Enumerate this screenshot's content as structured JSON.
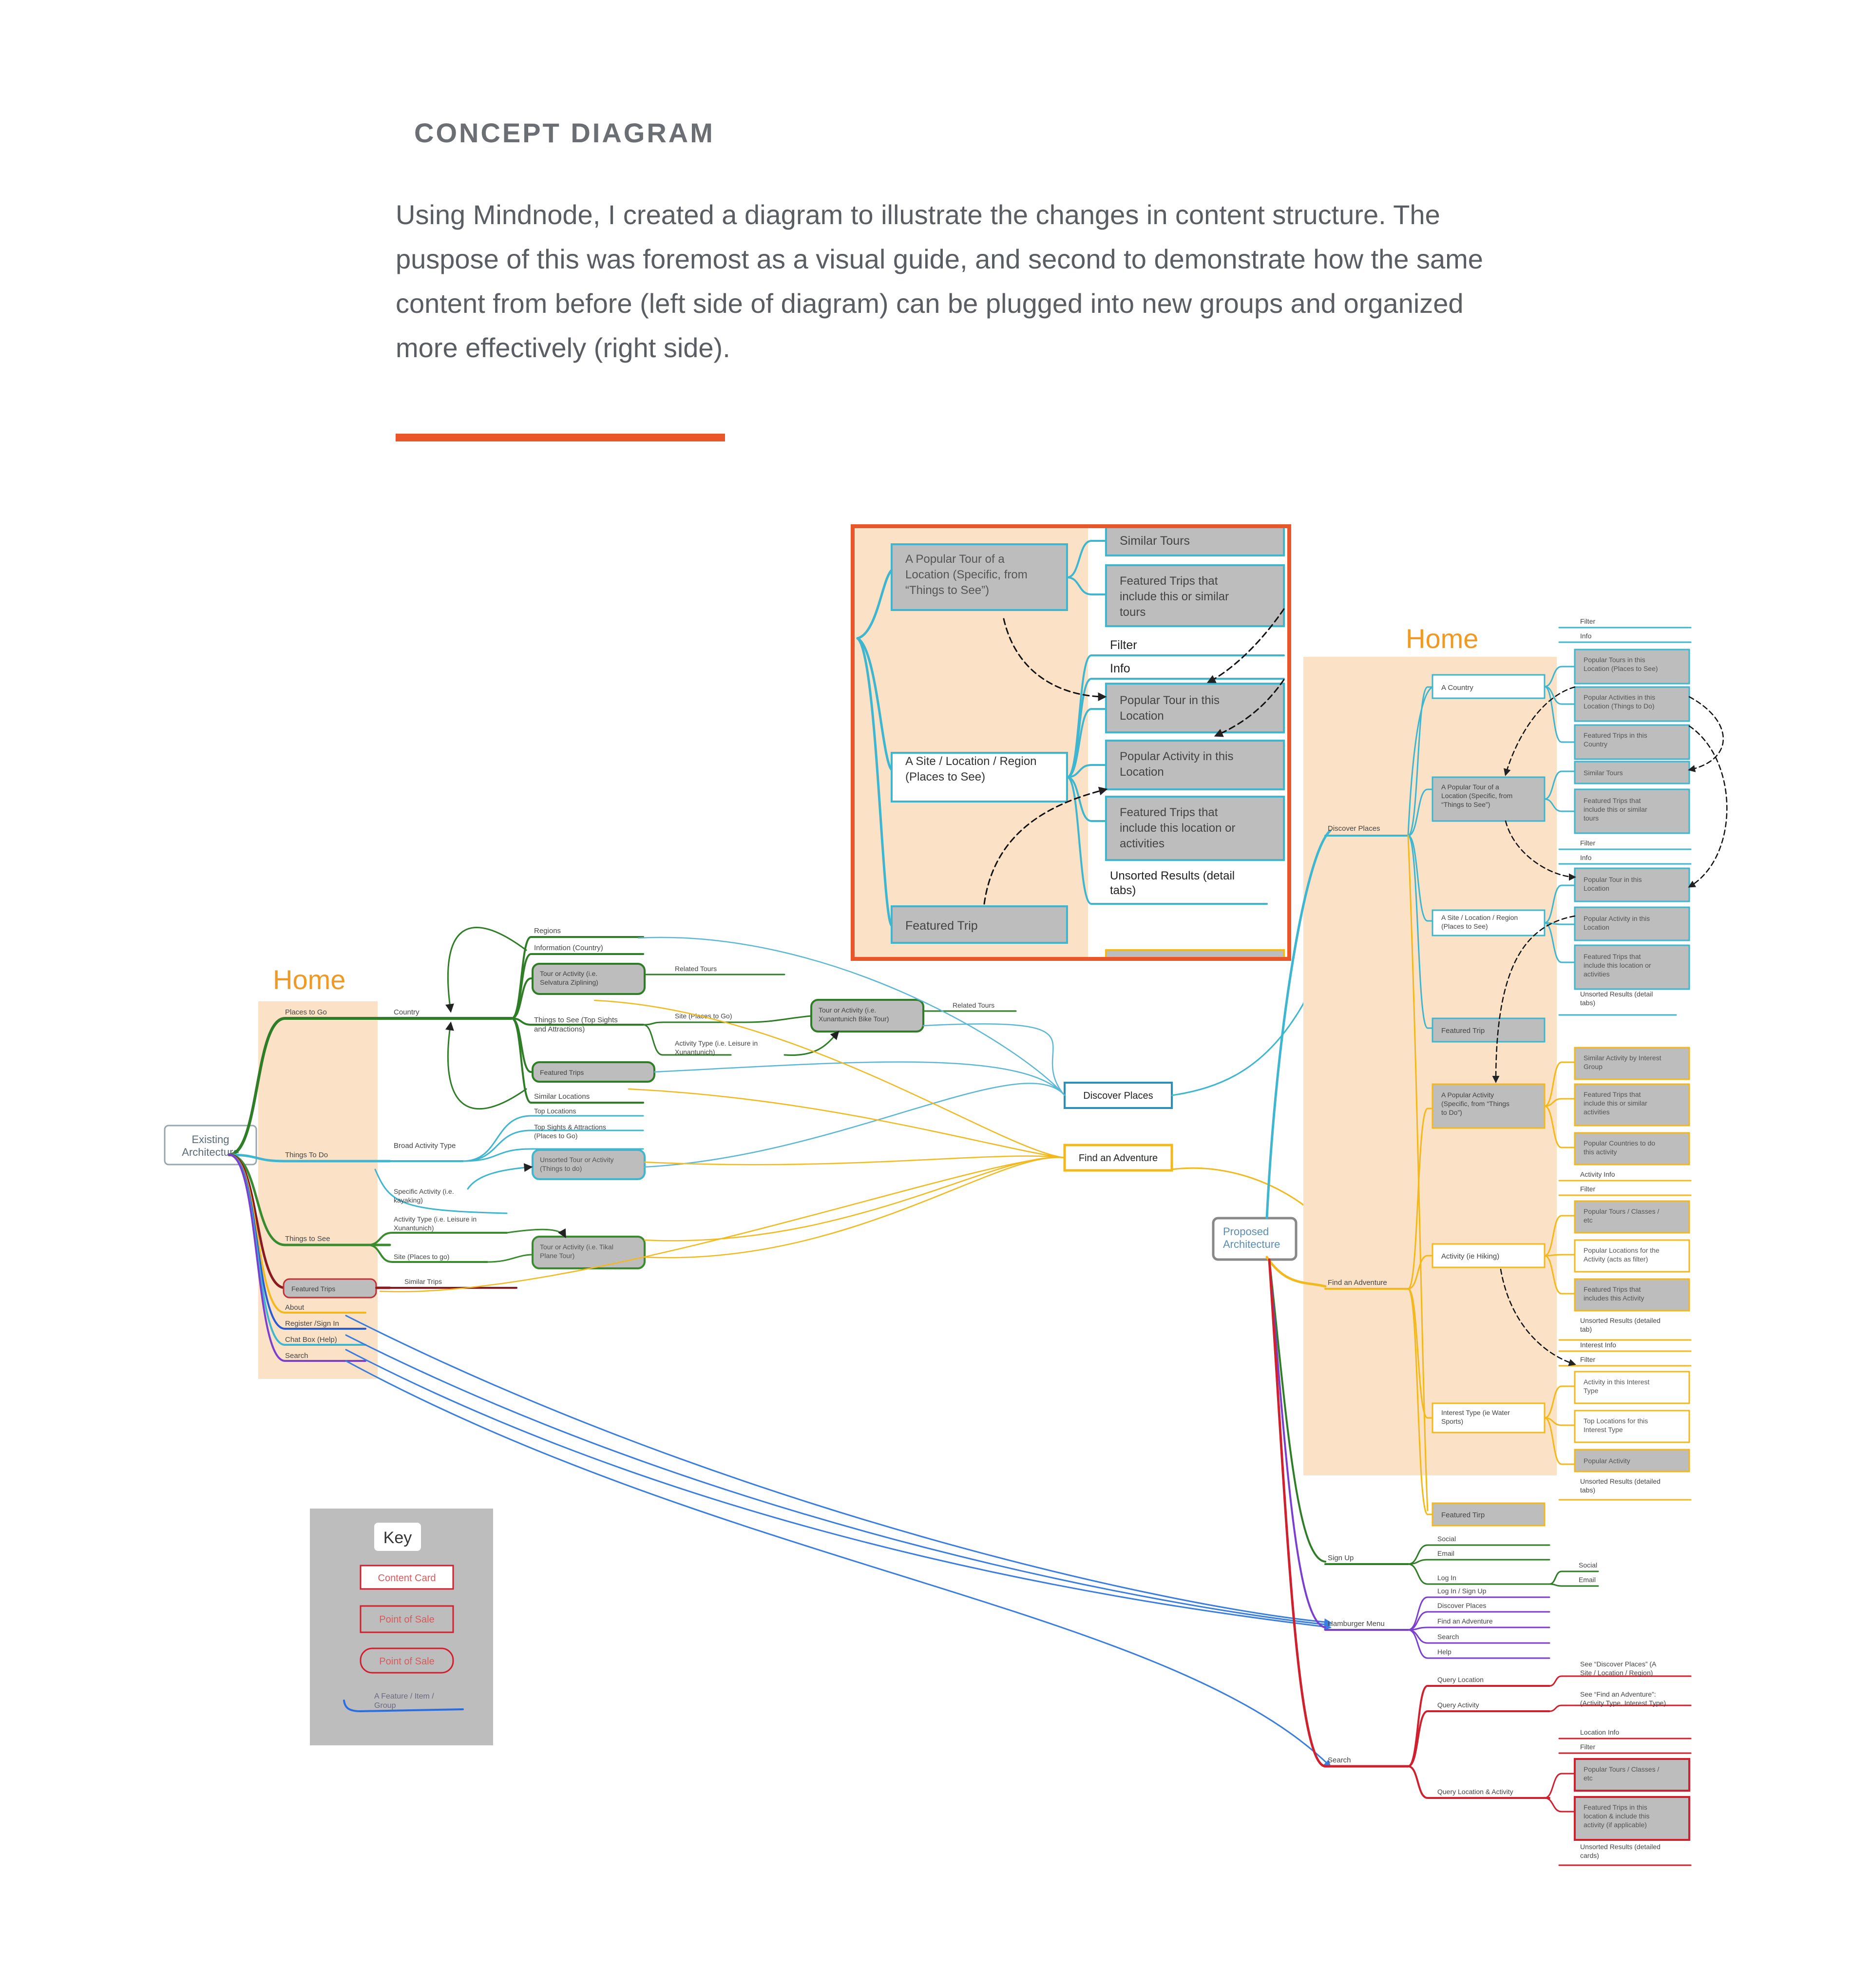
{
  "header": {
    "title": "CONCEPT DIAGRAM",
    "description": "Using Mindnode, I created a diagram to illustrate the changes in content structure. The puspose of this was foremost as a visual guide, and second to demonstrate how the same content from before (left side of diagram) can be plugged into new groups and organized more effectively (right side)."
  },
  "colors": {
    "accent_rule": "#e9562a",
    "home_band": "#fbe2c6",
    "home_label": "#f09a23",
    "teal": "#3fb6cf",
    "green": "#3a8b2f",
    "yellow": "#f2b81c",
    "purple": "#7b3fd0",
    "red": "#d0202e",
    "blue": "#3a7de0",
    "card_gray": "#bdbdbd"
  },
  "existing": {
    "home": "Home",
    "root": [
      "Existing",
      "Architecture"
    ],
    "sections": [
      "Places to Go",
      "Things To Do",
      "Things to See",
      "Featured Trips",
      "About",
      "Register /Sign In",
      "Chat Box (Help)",
      "Search"
    ],
    "places": {
      "country": "Country",
      "regions": "Regions",
      "information": "Information (Country)",
      "tour_card": [
        "Tour or Activity (i.e.",
        "Selvatura Ziplining)"
      ],
      "related_tours": "Related Tours",
      "things_to_see": [
        "Things to See (Top Sights",
        "and Attractions)"
      ],
      "site": "Site (Places to Go)",
      "activity_type": [
        "Activity Type (i.e. Leisure in",
        "Xunantunich)"
      ],
      "tour_card2": [
        "Tour or Activity (i.e.",
        "Xunantunich Bike Tour)"
      ],
      "related_tours2": "Related Tours",
      "featured_trips": "Featured Trips",
      "similar_locations": "Similar Locations"
    },
    "things_to_do": {
      "top_locations": "Top Locations",
      "top_sights": [
        "Top Sights & Attractions",
        "(Places to Go)"
      ],
      "broad_activity": "Broad Activity Type",
      "unsorted": [
        "Unsorted Tour or Activity",
        "(Things to do)"
      ],
      "specific_activity": [
        "Specific Activity (i.e.",
        "kayaking)"
      ]
    },
    "things_to_see": {
      "activity_type": [
        "Activity Type (i.e. Leisure in",
        "Xunantunich)"
      ],
      "site": "Site (Places to go)",
      "tour_card": [
        "Tour or Activity (i.e. Tikal",
        "Plane Tour)"
      ]
    },
    "featured": {
      "similar_trips": "Similar Trips"
    },
    "targets": {
      "discover": "Discover Places",
      "adventure": "Find an Adventure"
    }
  },
  "zoom": {
    "similar_tours": "Similar Tours",
    "popular_tour": [
      "A Popular Tour of a",
      "Location (Specific, from",
      "“Things to See”)"
    ],
    "featured_similar": [
      "Featured Trips that",
      "include this or similar",
      "tours"
    ],
    "filter": "Filter",
    "info": "Info",
    "popular_tour_loc": [
      "Popular Tour in this",
      "Location"
    ],
    "site": [
      "A Site / Location / Region",
      "(Places to See)"
    ],
    "popular_activity": [
      "Popular Activity in this",
      "Location"
    ],
    "featured_location": [
      "Featured Trips that",
      "include this location or",
      "activities"
    ],
    "unsorted": [
      "Unsorted Results (detail",
      "tabs)"
    ],
    "featured_trip": "Featured Trip"
  },
  "proposed": {
    "home": "Home",
    "root": [
      "Proposed",
      "Architecture"
    ],
    "discover": "Discover Places",
    "country": "A Country",
    "c_filter": "Filter",
    "c_info": "Info",
    "c_items": [
      [
        "Popular Tours in this",
        "Location (Places to See)"
      ],
      [
        "Popular Activities in this",
        "Location (Things to Do)"
      ],
      [
        "Featured Trips in this",
        "Country"
      ]
    ],
    "tour": [
      "A Popular Tour of a",
      "Location (Specific, from",
      "“Things to See”)"
    ],
    "tour_items": [
      [
        "Similar Tours"
      ],
      [
        "Featured Trips that",
        "include this or similar",
        "tours"
      ]
    ],
    "site": [
      "A Site / Location / Region",
      "(Places to See)"
    ],
    "s_filter": "Filter",
    "s_info": "Info",
    "site_items": [
      [
        "Popular Tour in this",
        "Location"
      ],
      [
        "Popular Activity in this",
        "Location"
      ],
      [
        "Featured Trips that",
        "include this location or",
        "activities"
      ]
    ],
    "s_unsorted": [
      "Unsorted Results (detail",
      "tabs)"
    ],
    "featured_trip": "Featured Trip",
    "adventure": "Find an Adventure",
    "pop_activity": [
      "A Popular Activity",
      "(Specific, from “Things",
      "to Do”)"
    ],
    "pa_items": [
      [
        "Similar Activity by Interest",
        "Group"
      ],
      [
        "Featured Trips that",
        "include this or similar",
        "activities"
      ],
      [
        "Popular Countries to do",
        "this activity"
      ]
    ],
    "activity": "Activity (ie Hiking)",
    "a_info": "Activity Info",
    "a_filter": "Filter",
    "a_items": [
      [
        "Popular Tours / Classes /",
        "etc"
      ],
      [
        "Popular Locations for the",
        "Activity (acts as filter)"
      ],
      [
        "Featured Trips that",
        "includes this Activity"
      ]
    ],
    "a_unsorted": [
      "Unsorted Results (detailed",
      "tab)"
    ],
    "interest": [
      "Interest Type (ie Water",
      "Sports)"
    ],
    "i_info": "Interest Info",
    "i_filter": "Filter",
    "i_items": [
      [
        "Activity in this Interest",
        "Type"
      ],
      [
        "Top Locations for this",
        "Interest Type"
      ],
      [
        "Popular Activity"
      ]
    ],
    "i_unsorted": [
      "Unsorted Results (detailed",
      "tabs)"
    ],
    "featured_tirp": "Featured Tirp",
    "signup": "Sign Up",
    "signup_items": [
      "Social",
      "Email",
      "Log In"
    ],
    "login_items": [
      "Social",
      "Email"
    ],
    "hamburger": "Hamburger Menu",
    "hamburger_items": [
      "Log In / Sign Up",
      "Discover Places",
      "Find an Adventure",
      "Search",
      "Help"
    ],
    "search": "Search",
    "q_location": "Query Location",
    "q_location_note": [
      "See “Discover Places” (A",
      "Site / Location / Region)"
    ],
    "q_activity": "Query Activity",
    "q_activity_note": [
      "See “Find an Adventure”:",
      "(Activity Type, Interest Type)"
    ],
    "q_both": "Query Location & Activity",
    "q_loc_info": "Location Info",
    "q_filter": "Filter",
    "q_items": [
      [
        "Popular Tours / Classes /",
        "etc"
      ],
      [
        "Featured Trips in this",
        "location & include this",
        "activity (if applicable)"
      ]
    ],
    "q_unsorted": [
      "Unsorted Results (detailed",
      "cards)"
    ]
  },
  "key": {
    "title": "Key",
    "content_card": "Content Card",
    "point_of_sale": "Point of Sale",
    "point_of_sale2": "Point of Sale",
    "feature": [
      "A Feature / Item /",
      "Group"
    ]
  }
}
